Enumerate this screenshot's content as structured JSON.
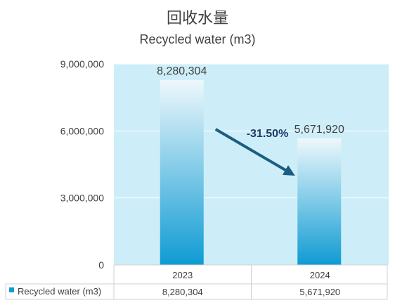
{
  "chart_data": {
    "type": "bar",
    "title": "回收水量",
    "subtitle": "Recycled water (m3)",
    "categories": [
      "2023",
      "2024"
    ],
    "series": [
      {
        "name": "Recycled water (m3)",
        "values": [
          8280304,
          5671920
        ]
      }
    ],
    "data_labels": [
      "8,280,304",
      "5,671,920"
    ],
    "table_values": [
      "8,280,304",
      "5,671,920"
    ],
    "annotation": "-31.50%",
    "ylim": [
      0,
      9000000
    ],
    "yticks": [
      0,
      3000000,
      6000000,
      9000000
    ],
    "ytick_labels": [
      "0",
      "3,000,000",
      "6,000,000",
      "9,000,000"
    ],
    "grid": true,
    "legend": "bottom-left data table",
    "colors": {
      "plot_bg": "#cdeef9",
      "bar_top": "#eef8fc",
      "bar_bottom": "#0f9bd3",
      "arrow": "#1b5e82",
      "annotation": "#1f3864",
      "text": "#404040",
      "grid": "#ffffff",
      "table_border": "#d0d0d0"
    }
  }
}
